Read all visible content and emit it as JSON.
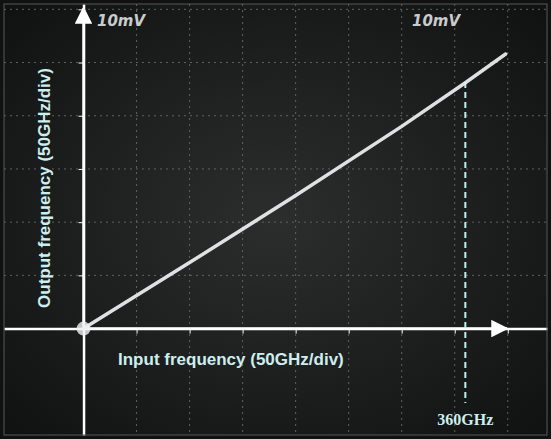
{
  "chart_data": {
    "type": "line",
    "x_label": "Input frequency (50GHz/div)",
    "y_label": "Output frequency (50GHz/div)",
    "channel_labels": [
      "10mV",
      "10mV"
    ],
    "x": [
      0,
      100,
      200,
      300,
      360,
      398
    ],
    "values": [
      0,
      62,
      125,
      190,
      231,
      258
    ],
    "color": "#eef2f2",
    "xlim": [
      -75,
      437
    ],
    "ylim": [
      -100,
      305
    ],
    "xticks": [
      0,
      50,
      100,
      150,
      200,
      250,
      300,
      350,
      400
    ],
    "yticks": [
      0,
      50,
      100,
      150,
      200,
      250,
      300
    ],
    "grid": true,
    "tick_labels": false,
    "annotations": [
      {
        "text": "360GHz",
        "x": 360
      }
    ]
  }
}
